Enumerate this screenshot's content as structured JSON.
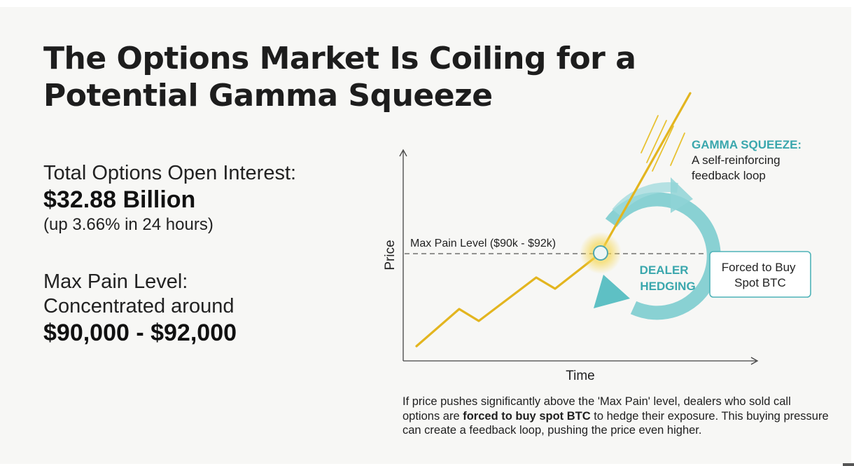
{
  "title": "The Options Market Is Coiling for a Potential Gamma Squeeze",
  "open_interest": {
    "label": "Total Options Open Interest:",
    "value": "$32.88 Billion",
    "change": "(up 3.66% in 24 hours)"
  },
  "max_pain": {
    "label_line1": "Max Pain Level:",
    "label_line2": "Concentrated around",
    "value": "$90,000 - $92,000"
  },
  "diagram": {
    "y_axis_label": "Price",
    "x_axis_label": "Time",
    "max_pain_line_label": "Max Pain Level ($90k - $92k)",
    "loop_label_line1": "DEALER",
    "loop_label_line2": "HEDGING",
    "box_line1": "Forced to Buy",
    "box_line2": "Spot BTC",
    "squeeze_title": "GAMMA SQUEEZE:",
    "squeeze_desc_line1": "A self-reinforcing",
    "squeeze_desc_line2": "feedback loop",
    "colors": {
      "price_line": "#e3b51f",
      "loop": "#7ccccf",
      "accent_text": "#3aa7ad",
      "box_border": "#4fb3b8"
    }
  },
  "caption": {
    "part1": "If price pushes significantly above the 'Max Pain' level, dealers who sold call options are ",
    "bold": "forced to buy spot BTC",
    "part2": " to hedge their exposure. This buying pressure can create a feedback loop, pushing the price even higher."
  }
}
